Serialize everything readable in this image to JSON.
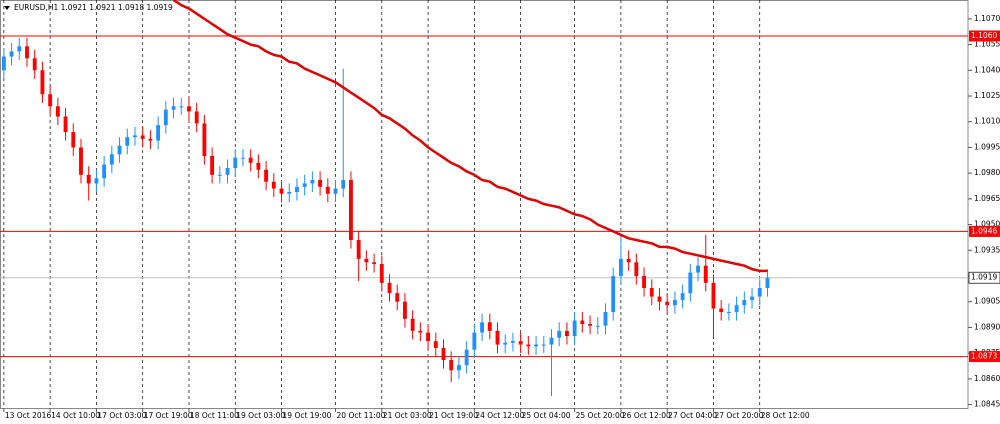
{
  "chart_data": {
    "type": "candlestick",
    "title": "EURUSD,H1  1.0921 1.0921 1.0918 1.0919",
    "up_color": "#1e90ff",
    "down_color": "#ff0000",
    "grid": true,
    "xlim": [
      -0.5,
      125
    ],
    "ylim": [
      1.0843,
      1.1081
    ],
    "x": [
      0,
      1,
      2,
      3,
      4,
      5,
      6,
      7,
      8,
      9,
      10,
      11,
      12,
      13,
      14,
      15,
      16,
      17,
      18,
      19,
      20,
      21,
      22,
      23,
      24,
      25,
      26,
      27,
      28,
      29,
      30,
      31,
      32,
      33,
      34,
      35,
      36,
      37,
      38,
      39,
      40,
      41,
      42,
      43,
      44,
      45,
      46,
      47,
      48,
      49,
      50,
      51,
      52,
      53,
      54,
      55,
      56,
      57,
      58,
      59,
      60,
      61,
      62,
      63,
      64,
      65,
      66,
      67,
      68,
      69,
      70,
      71,
      72,
      73,
      74,
      75,
      76,
      77,
      78,
      79,
      80,
      81,
      82,
      83,
      84,
      85,
      86,
      87,
      88,
      89,
      90,
      91,
      92,
      93,
      94,
      95,
      96,
      97,
      98,
      99
    ],
    "open": [
      1.104,
      1.1048,
      1.1051,
      1.1054,
      1.1047,
      1.104,
      1.1026,
      1.1019,
      1.1013,
      1.1004,
      1.0995,
      1.0979,
      1.0974,
      1.0977,
      1.0985,
      1.0991,
      1.0996,
      1.1001,
      1.1002,
      1.1,
      1.0999,
      1.1008,
      1.1017,
      1.1019,
      1.1019,
      1.1016,
      1.1009,
      1.099,
      1.0979,
      1.0979,
      1.0983,
      1.0989,
      1.0989,
      1.0986,
      1.0982,
      1.0975,
      1.0971,
      1.0968,
      1.0969,
      1.0972,
      1.0974,
      1.0976,
      1.0972,
      1.0968,
      1.0971,
      1.0976,
      1.0941,
      1.093,
      1.0928,
      1.0927,
      1.0916,
      1.091,
      1.0905,
      1.0895,
      1.0888,
      1.0887,
      1.0882,
      1.0878,
      1.0871,
      1.0865,
      1.0868,
      1.0877,
      1.0887,
      1.0893,
      1.0888,
      1.088,
      1.0881,
      1.0882,
      1.088,
      1.0879,
      1.088,
      1.088,
      1.0884,
      1.0888,
      1.0885,
      1.0894,
      1.0892,
      1.0891,
      1.0891,
      1.0899,
      1.092,
      1.093,
      1.0928,
      1.092,
      1.0913,
      1.0908,
      1.0905,
      1.0903,
      1.0906,
      1.091,
      1.0922,
      1.0926,
      1.0916,
      1.0901,
      1.0899,
      1.0899,
      1.0903,
      1.0906,
      1.0908,
      1.0913
    ],
    "high": [
      1.1053,
      1.1056,
      1.1059,
      1.1059,
      1.1052,
      1.1045,
      1.1031,
      1.1024,
      1.1018,
      1.1009,
      1.1,
      1.0984,
      1.0982,
      1.099,
      1.0996,
      1.1001,
      1.1006,
      1.1007,
      1.1007,
      1.1005,
      1.1013,
      1.1022,
      1.1024,
      1.1024,
      1.1024,
      1.1021,
      1.1014,
      1.0995,
      1.0984,
      1.0988,
      1.0994,
      1.0994,
      1.0994,
      1.0991,
      1.0987,
      1.098,
      1.0976,
      1.0974,
      1.0977,
      1.0979,
      1.0981,
      1.0981,
      1.0977,
      1.0976,
      1.1041,
      1.0981,
      1.0946,
      1.0935,
      1.0933,
      1.0932,
      1.0921,
      1.0915,
      1.091,
      1.09,
      1.0893,
      1.0892,
      1.0887,
      1.0883,
      1.0876,
      1.0873,
      1.0882,
      1.0892,
      1.0898,
      1.0898,
      1.0893,
      1.0886,
      1.0887,
      1.0887,
      1.0885,
      1.0885,
      1.0885,
      1.0889,
      1.0893,
      1.0893,
      1.0899,
      1.0899,
      1.0897,
      1.0896,
      1.0904,
      1.0925,
      1.0943,
      1.0935,
      1.0933,
      1.0925,
      1.0918,
      1.0913,
      1.091,
      1.0911,
      1.0915,
      1.0927,
      1.0931,
      1.0944,
      1.0921,
      1.0906,
      1.0904,
      1.0908,
      1.0911,
      1.0913,
      1.0918,
      1.0924
    ],
    "low": [
      1.1035,
      1.1043,
      1.1046,
      1.1042,
      1.1035,
      1.1021,
      1.1014,
      1.1008,
      1.0999,
      1.099,
      1.0974,
      1.0964,
      1.0969,
      1.0972,
      1.098,
      1.0986,
      1.0991,
      1.0996,
      1.0995,
      1.0994,
      1.0994,
      1.1003,
      1.1012,
      1.1014,
      1.1011,
      1.1004,
      1.0985,
      1.0974,
      1.0974,
      1.0974,
      1.0978,
      1.0984,
      1.0981,
      1.0977,
      1.097,
      1.0966,
      1.0963,
      1.0963,
      1.0964,
      1.0967,
      1.0969,
      1.0967,
      1.0963,
      1.0963,
      1.0966,
      1.0936,
      1.0917,
      1.0923,
      1.0922,
      1.0911,
      1.0905,
      1.09,
      1.089,
      1.0883,
      1.0882,
      1.0877,
      1.0873,
      1.0866,
      1.0858,
      1.086,
      1.0863,
      1.0872,
      1.0882,
      1.0883,
      1.0875,
      1.0875,
      1.0876,
      1.0875,
      1.0874,
      1.0874,
      1.0875,
      1.085,
      1.0879,
      1.088,
      1.088,
      1.0887,
      1.0886,
      1.0886,
      1.0886,
      1.0894,
      1.0915,
      1.0923,
      1.0915,
      1.0908,
      1.0903,
      1.09,
      1.0898,
      1.0898,
      1.0901,
      1.0905,
      1.0917,
      1.0911,
      1.0884,
      1.0894,
      1.0894,
      1.0894,
      1.0898,
      1.0901,
      1.0903,
      1.0908
    ],
    "close": [
      1.1048,
      1.1051,
      1.1054,
      1.1047,
      1.104,
      1.1026,
      1.1019,
      1.1013,
      1.1004,
      1.0995,
      1.0979,
      1.0974,
      1.0977,
      1.0985,
      1.0991,
      1.0996,
      1.1001,
      1.1002,
      1.1,
      1.0999,
      1.1008,
      1.1017,
      1.1019,
      1.1019,
      1.1016,
      1.1009,
      1.099,
      1.0979,
      1.0979,
      1.0983,
      1.0989,
      1.0989,
      1.0986,
      1.0982,
      1.0975,
      1.0971,
      1.0968,
      1.0969,
      1.0972,
      1.0974,
      1.0976,
      1.0972,
      1.0968,
      1.0971,
      1.0976,
      1.0941,
      1.093,
      1.0928,
      1.0927,
      1.0916,
      1.091,
      1.0905,
      1.0895,
      1.0888,
      1.0887,
      1.0882,
      1.0878,
      1.0871,
      1.0865,
      1.0868,
      1.0877,
      1.0887,
      1.0893,
      1.0888,
      1.088,
      1.0881,
      1.0882,
      1.088,
      1.0879,
      1.088,
      1.088,
      1.0884,
      1.0888,
      1.0885,
      1.0894,
      1.0892,
      1.0891,
      1.0891,
      1.0899,
      1.092,
      1.093,
      1.0928,
      1.092,
      1.0913,
      1.0908,
      1.0905,
      1.0903,
      1.0906,
      1.091,
      1.0922,
      1.0926,
      1.0916,
      1.0901,
      1.0899,
      1.0899,
      1.0903,
      1.0906,
      1.0908,
      1.0913,
      1.0919
    ],
    "ma": {
      "color": "#e00000",
      "values": [
        null,
        null,
        null,
        null,
        null,
        null,
        null,
        null,
        null,
        null,
        null,
        null,
        null,
        null,
        null,
        null,
        null,
        null,
        null,
        null,
        null,
        null,
        1.1081,
        1.1078,
        1.1076,
        1.1073,
        1.107,
        1.1067,
        1.1064,
        1.1061,
        1.1059,
        1.1057,
        1.1055,
        1.1054,
        1.1051,
        1.1049,
        1.1048,
        1.1045,
        1.1044,
        1.1041,
        1.1039,
        1.1037,
        1.1035,
        1.1033,
        1.103,
        1.1027,
        1.1024,
        1.1021,
        1.1018,
        1.1014,
        1.1012,
        1.1009,
        1.1006,
        1.1002,
        1.0999,
        1.0995,
        1.0992,
        1.0989,
        1.0986,
        1.0984,
        1.0981,
        1.0979,
        1.0976,
        1.0975,
        1.0972,
        1.0971,
        1.0969,
        1.0967,
        1.0965,
        1.0964,
        1.0962,
        1.0961,
        1.096,
        1.0958,
        1.0956,
        1.0955,
        1.0953,
        1.095,
        1.0948,
        1.0946,
        1.0944,
        1.0942,
        1.0941,
        1.094,
        1.0939,
        1.0937,
        1.0937,
        1.0936,
        1.0934,
        1.0933,
        1.0932,
        1.0931,
        1.093,
        1.0929,
        1.0928,
        1.0927,
        1.0926,
        1.0924,
        1.0923,
        1.0923
      ]
    },
    "hlines": [
      {
        "value": 1.106,
        "label": "1.1060"
      },
      1.0946,
      1.0873
    ],
    "hline_color": "#ff0000",
    "last_price": 1.0919,
    "yticks": [
      {
        "value": 1.107,
        "label": "1.1070"
      },
      1.1055,
      {
        "value": 1.104,
        "label": "1.1040"
      },
      1.1025,
      {
        "value": 1.101,
        "label": "1.1010"
      },
      1.0995,
      {
        "value": 1.098,
        "label": "1.0980"
      },
      1.0965,
      {
        "value": 1.095,
        "label": "1.0950"
      },
      1.0935,
      {
        "value": 1.092,
        "label": "1.0920"
      },
      1.0905,
      {
        "value": 1.089,
        "label": "1.0890"
      },
      1.0875,
      {
        "value": 1.086,
        "label": "1.0860"
      },
      1.0845
    ],
    "xticks": [
      {
        "value": 0,
        "label": "13 Oct 2016"
      },
      {
        "value": 6,
        "label": "14 Oct 10:00"
      },
      {
        "value": 12,
        "label": "17 Oct 03:00"
      },
      {
        "value": 18,
        "label": "17 Oct 19:00"
      },
      {
        "value": 24,
        "label": "18 Oct 11:00"
      },
      {
        "value": 30,
        "label": "19 Oct 03:00"
      },
      {
        "value": 36,
        "label": "19 Oct 19:00"
      },
      {
        "value": 43,
        "label": "20 Oct 11:00"
      },
      {
        "value": 49,
        "label": "21 Oct 03:00"
      },
      {
        "value": 55,
        "label": "21 Oct 19:00"
      },
      {
        "value": 61,
        "label": "24 Oct 12:00"
      },
      {
        "value": 67,
        "label": "25 Oct 04:00"
      },
      {
        "value": 74,
        "label": "25 Oct 20:00"
      },
      {
        "value": 80,
        "label": "26 Oct 12:00"
      },
      {
        "value": 86,
        "label": "27 Oct 04:00"
      },
      {
        "value": 92,
        "label": "27 Oct 20:00"
      },
      {
        "value": 98,
        "label": "28 Oct 12:00"
      }
    ]
  }
}
